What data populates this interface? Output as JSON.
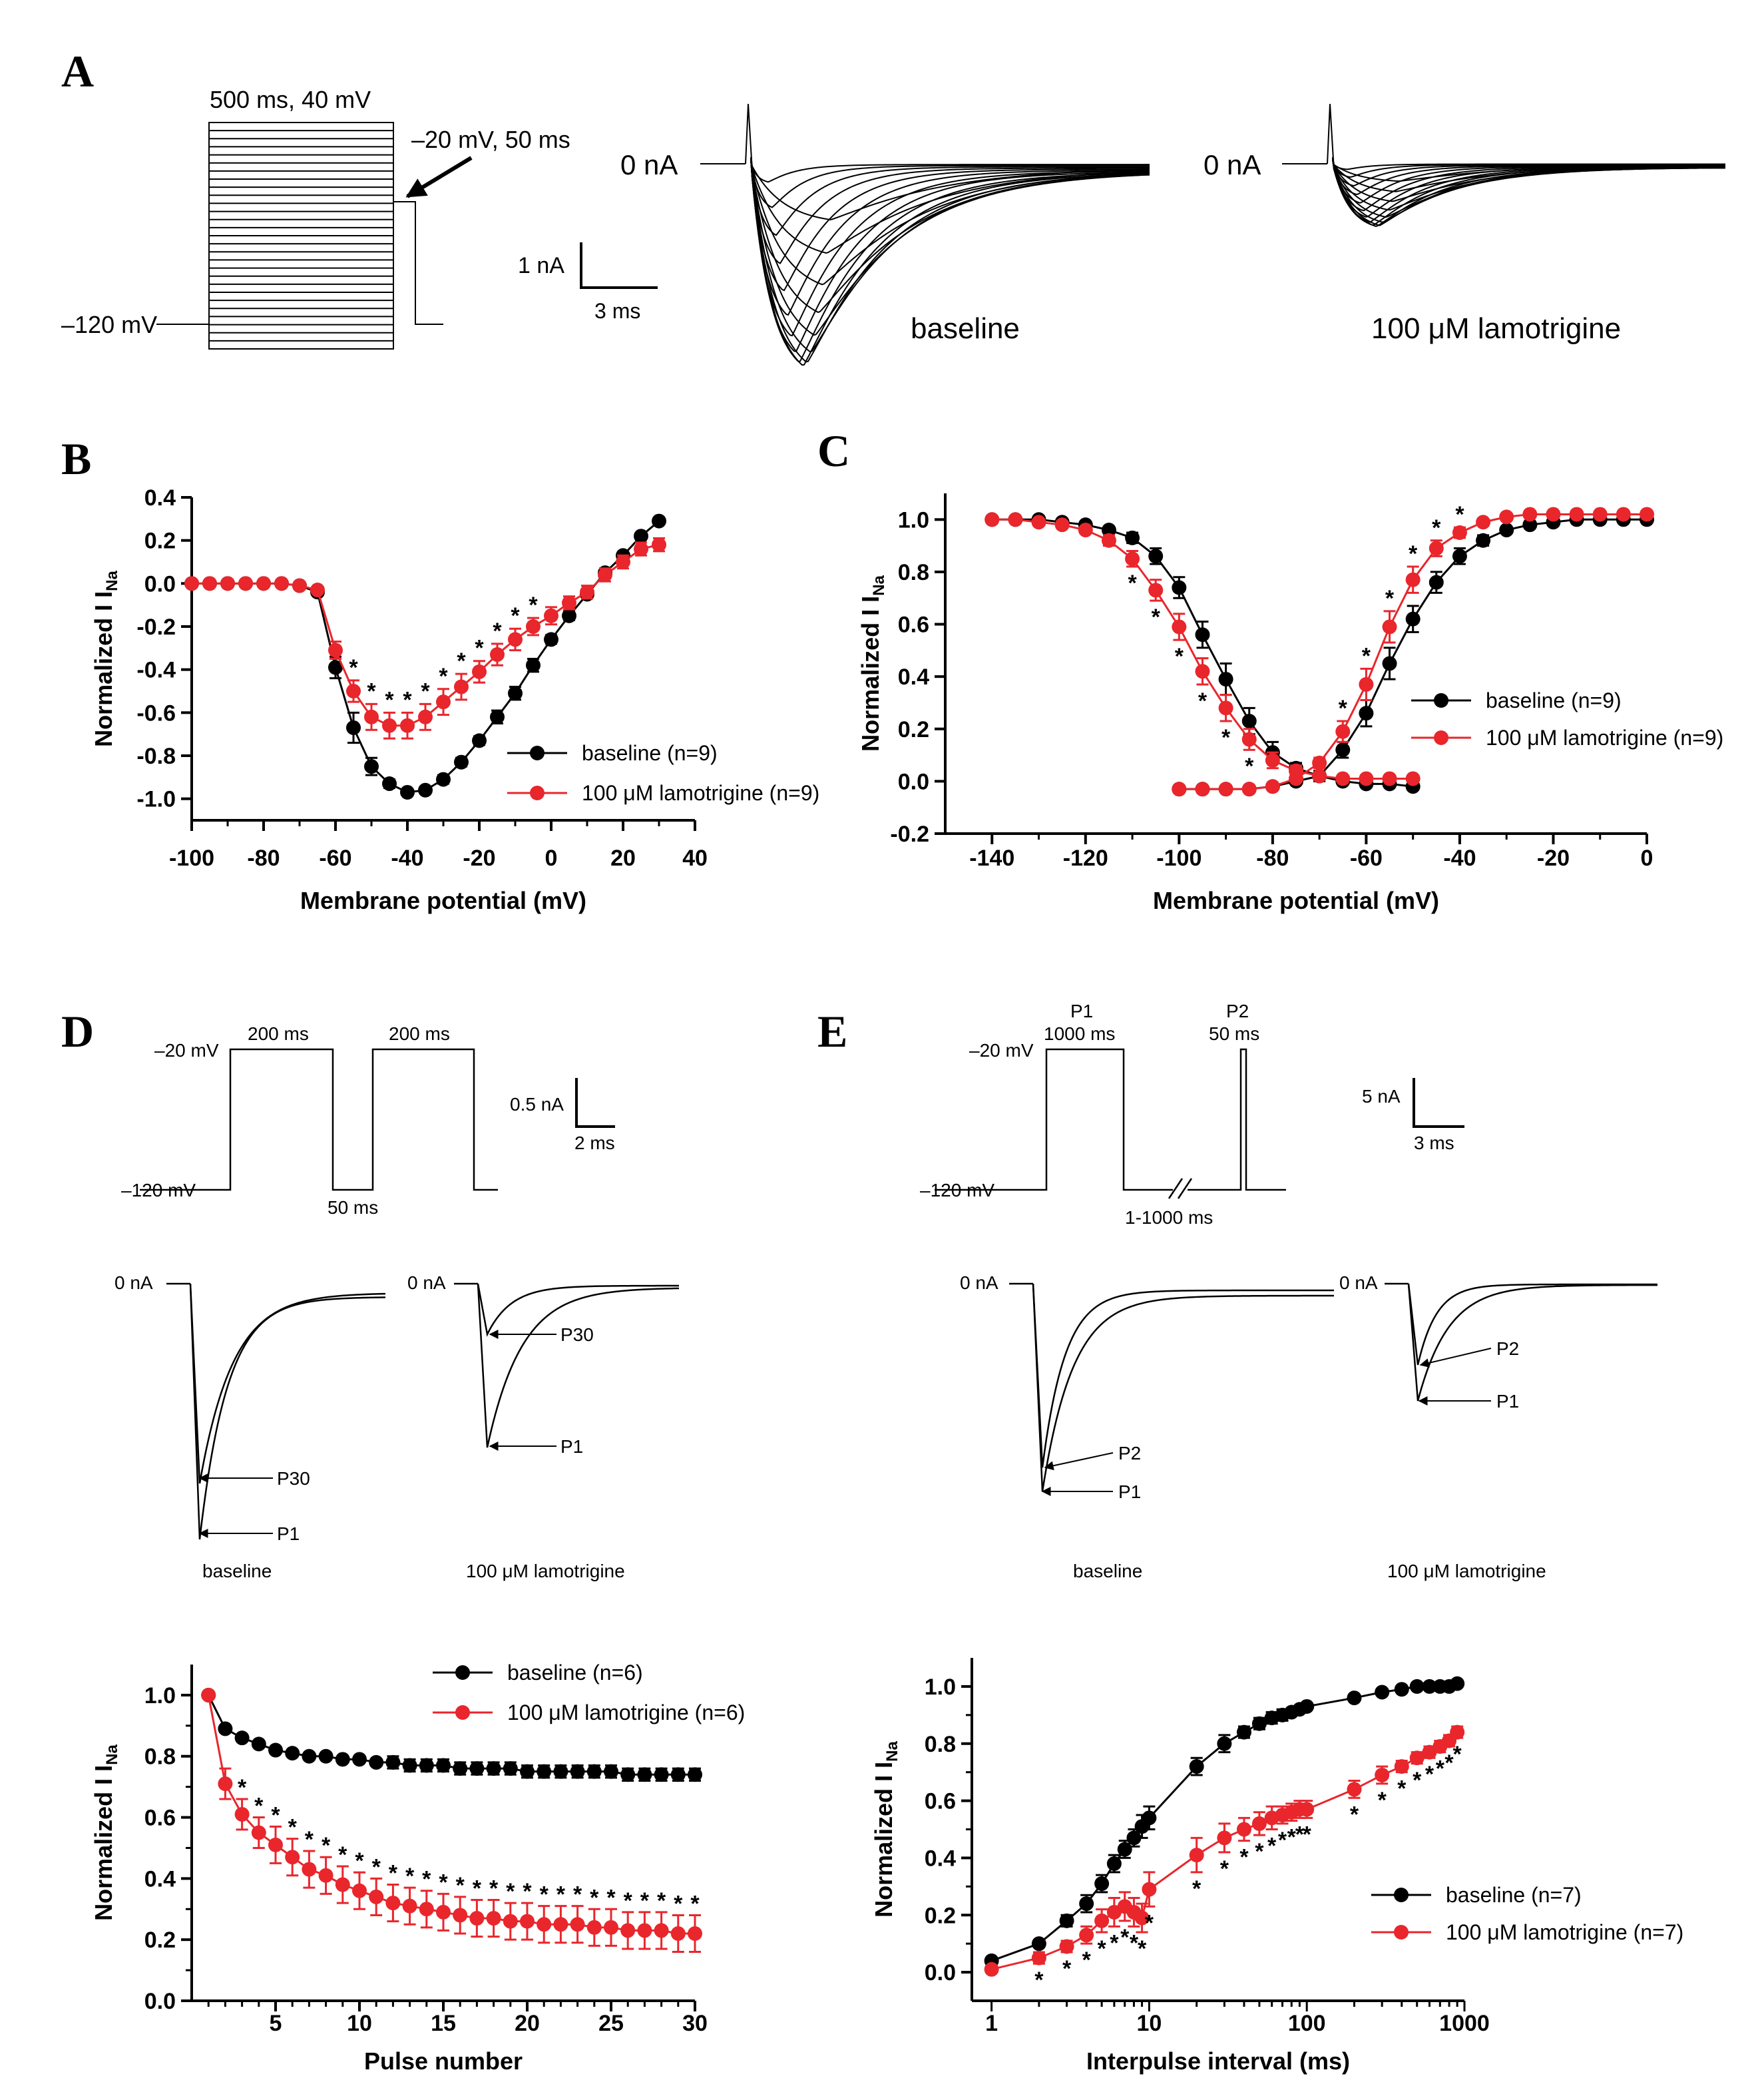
{
  "colors": {
    "baseline": "#000000",
    "lamotrigine": "#e8262c"
  },
  "panel_letters": {
    "a": "A",
    "b": "B",
    "c": "C",
    "d": "D",
    "e": "E"
  },
  "panel_a": {
    "protocol_top": "500 ms, 40 mV",
    "protocol_test": "–20 mV, 50 ms",
    "protocol_hold": "–120 mV",
    "scale_y": "1 nA",
    "scale_x": "3 ms",
    "zero_label": "0 nA",
    "trace_label_baseline": "baseline",
    "trace_label_drug": "100 μM lamotrigine"
  },
  "panel_d": {
    "p_high": "–20 mV",
    "p_low": "–120 mV",
    "p_dur1": "200 ms",
    "p_dur2": "200 ms",
    "p_gap": "50 ms",
    "scale_y": "0.5 nA",
    "scale_x": "2 ms",
    "zero_label": "0 nA",
    "arrow_p30": "P30",
    "arrow_p1": "P1",
    "label_baseline": "baseline",
    "label_drug": "100 μM lamotrigine"
  },
  "panel_e": {
    "p1_title": "P1",
    "p1_dur": "1000 ms",
    "p2_title": "P2",
    "p2_dur": "50 ms",
    "p_high": "–20 mV",
    "p_low": "–120 mV",
    "p_gap": "1-1000 ms",
    "scale_y": "5 nA",
    "scale_x": "3 ms",
    "zero_label": "0 nA",
    "arrow_p2": "P2",
    "arrow_p1": "P1",
    "label_baseline": "baseline",
    "label_drug": "100 μM lamotrigine"
  },
  "chart_data": [
    {
      "id": "B",
      "type": "line",
      "xlabel": "Membrane potential (mV)",
      "ylabel": "Normalized I_Na",
      "xlim": [
        -100,
        40
      ],
      "ylim": [
        -1.1,
        0.4
      ],
      "xticks": [
        -100,
        -80,
        -60,
        -40,
        -20,
        0,
        20,
        40
      ],
      "yticks": [
        0.4,
        0.2,
        0.0,
        -0.2,
        -0.4,
        -0.6,
        -0.8,
        -1.0
      ],
      "x": [
        -100,
        -95,
        -90,
        -85,
        -80,
        -75,
        -70,
        -65,
        -60,
        -55,
        -50,
        -45,
        -40,
        -35,
        -30,
        -25,
        -20,
        -15,
        -10,
        -5,
        0,
        5,
        10,
        15,
        20,
        25,
        30
      ],
      "series": [
        {
          "name": "baseline (n=9)",
          "values": [
            0,
            0,
            0,
            0,
            0,
            0,
            -0.01,
            -0.04,
            -0.39,
            -0.67,
            -0.85,
            -0.93,
            -0.97,
            -0.96,
            -0.91,
            -0.83,
            -0.73,
            -0.62,
            -0.51,
            -0.38,
            -0.26,
            -0.15,
            -0.05,
            0.05,
            0.13,
            0.22,
            0.29
          ],
          "err": [
            0,
            0,
            0,
            0,
            0,
            0,
            0.01,
            0.01,
            0.05,
            0.07,
            0.04,
            0.02,
            0.01,
            0.01,
            0.02,
            0.02,
            0.02,
            0.03,
            0.03,
            0.03,
            0.02,
            0.02,
            0.02,
            0.02,
            0.01,
            0.01,
            0.01
          ]
        },
        {
          "name": "100 μM lamotrigine (n=9)",
          "values": [
            0,
            0,
            0,
            0,
            0,
            0,
            -0.01,
            -0.03,
            -0.31,
            -0.5,
            -0.62,
            -0.66,
            -0.66,
            -0.62,
            -0.55,
            -0.48,
            -0.41,
            -0.33,
            -0.26,
            -0.2,
            -0.15,
            -0.09,
            -0.04,
            0.04,
            0.1,
            0.16,
            0.18
          ],
          "err": [
            0,
            0,
            0,
            0,
            0,
            0,
            0.01,
            0.01,
            0.04,
            0.05,
            0.06,
            0.06,
            0.06,
            0.06,
            0.06,
            0.06,
            0.05,
            0.05,
            0.05,
            0.04,
            0.04,
            0.03,
            0.03,
            0.03,
            0.03,
            0.03,
            0.03
          ]
        }
      ],
      "signif_x": [
        -55,
        -50,
        -45,
        -40,
        -35,
        -30,
        -25,
        -20,
        -15,
        -10,
        -5
      ],
      "legend": [
        "baseline (n=9)",
        "100 μM lamotrigine (n=9)"
      ]
    },
    {
      "id": "C",
      "type": "line",
      "xlabel": "Membrane potential (mV)",
      "ylabel": "Normalized I_Na",
      "xlim": [
        -150,
        0
      ],
      "ylim": [
        -0.2,
        1.1
      ],
      "xticks": [
        -140,
        -120,
        -100,
        -80,
        -60,
        -40,
        -20,
        0
      ],
      "yticks": [
        1.0,
        0.8,
        0.6,
        0.4,
        0.2,
        0.0,
        -0.2
      ],
      "x_inact": [
        -140,
        -135,
        -130,
        -125,
        -120,
        -115,
        -110,
        -105,
        -100,
        -95,
        -90,
        -85,
        -80,
        -75,
        -70,
        -65,
        -60,
        -55,
        -50
      ],
      "x_act": [
        -100,
        -95,
        -90,
        -85,
        -80,
        -75,
        -70,
        -65,
        -60,
        -55,
        -50,
        -45,
        -40,
        -35,
        -30,
        -25,
        -20,
        -15,
        -10,
        -5,
        0
      ],
      "series": [
        {
          "name": "baseline (n=9) inactivation",
          "values": [
            1.0,
            1.0,
            1.0,
            0.99,
            0.98,
            0.96,
            0.93,
            0.86,
            0.74,
            0.56,
            0.39,
            0.23,
            0.11,
            0.05,
            0.02,
            0.0,
            -0.01,
            -0.01,
            -0.02
          ],
          "err": [
            0,
            0,
            0,
            0.01,
            0.01,
            0.01,
            0.02,
            0.03,
            0.04,
            0.05,
            0.06,
            0.05,
            0.04,
            0.02,
            0.01,
            0.01,
            0.01,
            0.01,
            0.01
          ]
        },
        {
          "name": "100 μM lamotrigine (n=9) inactivation",
          "values": [
            1.0,
            1.0,
            0.99,
            0.98,
            0.96,
            0.92,
            0.85,
            0.73,
            0.59,
            0.42,
            0.28,
            0.16,
            0.08,
            0.04,
            0.02,
            0.01,
            0.01,
            0.01,
            0.01
          ],
          "err": [
            0,
            0,
            0,
            0.01,
            0.01,
            0.02,
            0.03,
            0.04,
            0.05,
            0.05,
            0.05,
            0.04,
            0.03,
            0.02,
            0.01,
            0.01,
            0.01,
            0.01,
            0.01
          ]
        },
        {
          "name": "baseline (n=9) activation",
          "values": [
            -0.03,
            -0.03,
            -0.03,
            -0.03,
            -0.02,
            0.0,
            0.02,
            0.12,
            0.26,
            0.45,
            0.62,
            0.76,
            0.86,
            0.92,
            0.96,
            0.98,
            0.99,
            1.0,
            1.0,
            1.0,
            1.0
          ],
          "err": [
            0.01,
            0.01,
            0.01,
            0.01,
            0.01,
            0.01,
            0.02,
            0.03,
            0.05,
            0.06,
            0.05,
            0.04,
            0.03,
            0.02,
            0.01,
            0.01,
            0.01,
            0.01,
            0.01,
            0.01,
            0.01
          ]
        },
        {
          "name": "100 μM lamotrigine (n=9) activation",
          "values": [
            -0.03,
            -0.03,
            -0.03,
            -0.03,
            -0.02,
            0.01,
            0.07,
            0.19,
            0.37,
            0.59,
            0.77,
            0.89,
            0.95,
            0.99,
            1.01,
            1.02,
            1.02,
            1.02,
            1.02,
            1.02,
            1.02
          ],
          "err": [
            0.01,
            0.01,
            0.01,
            0.01,
            0.01,
            0.01,
            0.02,
            0.04,
            0.06,
            0.06,
            0.05,
            0.03,
            0.02,
            0.01,
            0.01,
            0.01,
            0.01,
            0.01,
            0.01,
            0.01,
            0.01
          ]
        }
      ],
      "signif_x_inact": [
        -110,
        -105,
        -100,
        -95,
        -90,
        -85
      ],
      "signif_x_act": [
        -65,
        -60,
        -55,
        -50,
        -45,
        -40
      ],
      "legend": [
        "baseline (n=9)",
        "100 μM lamotrigine (n=9)"
      ]
    },
    {
      "id": "D",
      "type": "line",
      "xlabel": "Pulse number",
      "ylabel": "Normalized I_Na",
      "xlim": [
        0,
        30
      ],
      "ylim": [
        0.0,
        1.1
      ],
      "xticks": [
        5,
        10,
        15,
        20,
        25,
        30
      ],
      "yticks": [
        1.0,
        0.8,
        0.6,
        0.4,
        0.2,
        0.0
      ],
      "x": [
        1,
        2,
        3,
        4,
        5,
        6,
        7,
        8,
        9,
        10,
        11,
        12,
        13,
        14,
        15,
        16,
        17,
        18,
        19,
        20,
        21,
        22,
        23,
        24,
        25,
        26,
        27,
        28,
        29,
        30
      ],
      "series": [
        {
          "name": "baseline (n=6)",
          "values": [
            1.0,
            0.89,
            0.86,
            0.84,
            0.82,
            0.81,
            0.8,
            0.8,
            0.79,
            0.79,
            0.78,
            0.78,
            0.77,
            0.77,
            0.77,
            0.76,
            0.76,
            0.76,
            0.76,
            0.75,
            0.75,
            0.75,
            0.75,
            0.75,
            0.75,
            0.74,
            0.74,
            0.74,
            0.74,
            0.74
          ],
          "err": [
            0,
            0.01,
            0.01,
            0.01,
            0.01,
            0.01,
            0.01,
            0.01,
            0.01,
            0.01,
            0.01,
            0.02,
            0.02,
            0.02,
            0.02,
            0.02,
            0.02,
            0.02,
            0.02,
            0.02,
            0.02,
            0.02,
            0.02,
            0.02,
            0.02,
            0.02,
            0.02,
            0.02,
            0.02,
            0.02
          ]
        },
        {
          "name": "100 μM lamotrigine (n=6)",
          "values": [
            1.0,
            0.71,
            0.61,
            0.55,
            0.51,
            0.47,
            0.43,
            0.41,
            0.38,
            0.36,
            0.34,
            0.32,
            0.31,
            0.3,
            0.29,
            0.28,
            0.27,
            0.27,
            0.26,
            0.26,
            0.25,
            0.25,
            0.25,
            0.24,
            0.24,
            0.23,
            0.23,
            0.23,
            0.22,
            0.22
          ],
          "err": [
            0,
            0.05,
            0.05,
            0.05,
            0.06,
            0.06,
            0.06,
            0.06,
            0.06,
            0.06,
            0.06,
            0.06,
            0.06,
            0.06,
            0.06,
            0.06,
            0.06,
            0.06,
            0.06,
            0.06,
            0.06,
            0.06,
            0.06,
            0.06,
            0.06,
            0.06,
            0.06,
            0.06,
            0.06,
            0.06
          ]
        }
      ],
      "signif_from": 3,
      "legend": [
        "baseline (n=6)",
        "100 μM lamotrigine (n=6)"
      ]
    },
    {
      "id": "E",
      "type": "line",
      "xscale": "log",
      "xlabel": "Interpulse interval (ms)",
      "ylabel": "Normalized I_Na",
      "xlim": [
        0.75,
        1000
      ],
      "ylim": [
        -0.1,
        1.1
      ],
      "xticks": [
        1,
        10,
        100,
        1000
      ],
      "yticks": [
        1.0,
        0.8,
        0.6,
        0.4,
        0.2,
        0.0
      ],
      "x": [
        1,
        2,
        3,
        4,
        5,
        6,
        7,
        8,
        9,
        10,
        20,
        30,
        40,
        50,
        60,
        70,
        80,
        90,
        100,
        200,
        300,
        400,
        500,
        600,
        700,
        800,
        900
      ],
      "series": [
        {
          "name": "baseline (n=7)",
          "values": [
            0.04,
            0.1,
            0.18,
            0.24,
            0.31,
            0.38,
            0.43,
            0.47,
            0.51,
            0.54,
            0.72,
            0.8,
            0.84,
            0.87,
            0.89,
            0.9,
            0.91,
            0.92,
            0.93,
            0.96,
            0.98,
            0.99,
            1.0,
            1.0,
            1.0,
            1.0,
            1.01
          ],
          "err": [
            0.01,
            0.01,
            0.02,
            0.03,
            0.03,
            0.03,
            0.03,
            0.03,
            0.04,
            0.04,
            0.03,
            0.03,
            0.02,
            0.02,
            0.02,
            0.02,
            0.01,
            0.01,
            0.01,
            0.01,
            0.01,
            0.01,
            0.01,
            0.01,
            0.01,
            0.01,
            0.01
          ]
        },
        {
          "name": "100 μM lamotrigine (n=7)",
          "values": [
            0.01,
            0.05,
            0.09,
            0.13,
            0.18,
            0.21,
            0.23,
            0.21,
            0.19,
            0.29,
            0.41,
            0.47,
            0.5,
            0.52,
            0.54,
            0.55,
            0.56,
            0.57,
            0.57,
            0.64,
            0.69,
            0.72,
            0.75,
            0.77,
            0.79,
            0.81,
            0.84
          ],
          "err": [
            0.01,
            0.02,
            0.02,
            0.03,
            0.04,
            0.05,
            0.05,
            0.05,
            0.05,
            0.06,
            0.06,
            0.05,
            0.04,
            0.04,
            0.04,
            0.03,
            0.03,
            0.03,
            0.03,
            0.03,
            0.03,
            0.02,
            0.02,
            0.02,
            0.02,
            0.02,
            0.02
          ]
        }
      ],
      "signif_from_index": 1,
      "legend": [
        "baseline (n=7)",
        "100 μM lamotrigine (n=7)"
      ]
    }
  ]
}
